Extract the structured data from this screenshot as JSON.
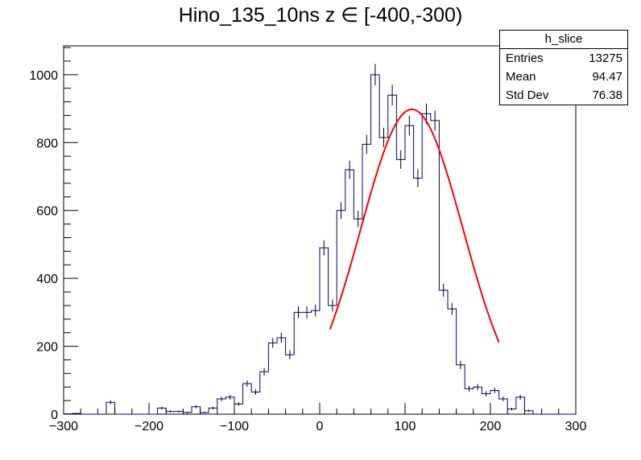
{
  "title": "Hino_135_10ns z  ∈ [-400,-300)",
  "stats": {
    "name": "h_slice",
    "rows": [
      {
        "label": "Entries",
        "value": "13275"
      },
      {
        "label": "Mean",
        "value": "94.47"
      },
      {
        "label": "Std Dev",
        "value": "76.38"
      }
    ]
  },
  "chart_data": {
    "type": "histogram",
    "xlim": [
      -300,
      300
    ],
    "ylim": [
      0,
      1085
    ],
    "x_ticks": [
      -300,
      -200,
      -100,
      0,
      100,
      200,
      300
    ],
    "y_ticks": [
      0,
      200,
      400,
      600,
      800,
      1000
    ],
    "bin_width": 10,
    "bin_start": -300,
    "values": [
      1,
      2,
      0,
      0,
      0,
      35,
      0,
      0,
      0,
      0,
      0,
      18,
      8,
      8,
      5,
      22,
      5,
      18,
      45,
      50,
      30,
      90,
      65,
      125,
      210,
      225,
      175,
      300,
      300,
      305,
      490,
      320,
      600,
      720,
      575,
      795,
      1000,
      815,
      940,
      750,
      850,
      695,
      885,
      865,
      365,
      310,
      145,
      75,
      80,
      60,
      70,
      45,
      15,
      50,
      10,
      0,
      0,
      0,
      0,
      0
    ],
    "fit": {
      "type": "gaussian",
      "amplitude": 898,
      "mean": 108,
      "sigma": 60,
      "x_range": [
        12,
        210
      ],
      "color": "#ff0000"
    },
    "histogram_color": "#000080"
  }
}
